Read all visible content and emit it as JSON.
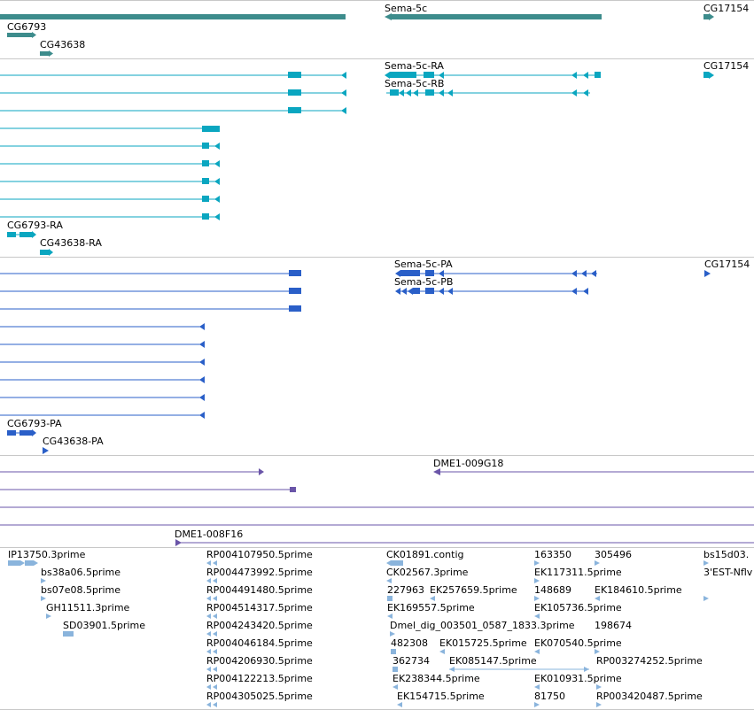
{
  "tracks": {
    "gene_span": {
      "color": "#3d8c8c",
      "labels": {
        "sema5c": "Sema-5c",
        "cg17154": "CG17154",
        "cg6793": "CG6793",
        "cg43638": "CG43638"
      }
    },
    "transcripts_1": {
      "color": "#0aa6c0",
      "labels": {
        "sema5c_ra": "Sema-5c-RA",
        "sema5c_rb": "Sema-5c-RB",
        "cg17154": "CG17154",
        "cg6793_ra": "CG6793-RA",
        "cg43638_ra": "CG43638-RA"
      }
    },
    "transcripts_2": {
      "color": "#2a5fc8",
      "labels": {
        "sema5c_pa": "Sema-5c-PA",
        "sema5c_pb": "Sema-5c-PB",
        "cg17154": "CG17154",
        "cg6793_pa": "CG6793-PA",
        "cg43638_pa": "CG43638-PA"
      }
    },
    "bac_clones": {
      "color": "#6a55a8",
      "labels": {
        "clone_a": "DME1-009G18",
        "clone_b": "DME1-008F16"
      }
    },
    "est": {
      "color": "#8ab4dc",
      "labels": {
        "c1_0": "IP13750.3prime",
        "c1_1": "bs38a06.5prime",
        "c1_2": "bs07e08.5prime",
        "c1_3": "GH11511.3prime",
        "c1_4": "SD03901.5prime",
        "c2_0": "RP004107950.5prime",
        "c2_1": "RP004473992.5prime",
        "c2_2": "RP004491480.5prime",
        "c2_3": "RP004514317.5prime",
        "c2_4": "RP004243420.5prime",
        "c2_5": "RP004046184.5prime",
        "c2_6": "RP004206930.5prime",
        "c2_7": "RP004122213.5prime",
        "c2_8": "RP004305025.5prime",
        "c3_0": "CK01891.contig",
        "c3_1": "CK02567.3prime",
        "c3_2": "227963",
        "c3_3": "EK257659.5prime",
        "c3_4": "EK169557.5prime",
        "c3_5": "Dmel_dig_003501_0587_1833.3prime",
        "c3_6": "482308",
        "c3_7": "EK015725.5prime",
        "c3_8": "362734",
        "c3_9": "EK085147.5prime",
        "c3_10": "EK238344.5prime",
        "c3_11": "EK154715.5prime",
        "c4_0": "163350",
        "c4_1": "EK117311.5prime",
        "c4_2": "148689",
        "c4_3": "EK105736.5prime",
        "c4_4": "EK070540.5prime",
        "c4_5": "EK010931.5prime",
        "c4_6": "81750",
        "c5_0": "305496",
        "c5_1": "EK184610.5prime",
        "c5_2": "198674",
        "c5_3": "RP003274252.5prime",
        "c5_4": "RP003420487.5prime",
        "c6_0": "bs15d03.",
        "c6_1": "3'EST-Nflv"
      }
    }
  }
}
